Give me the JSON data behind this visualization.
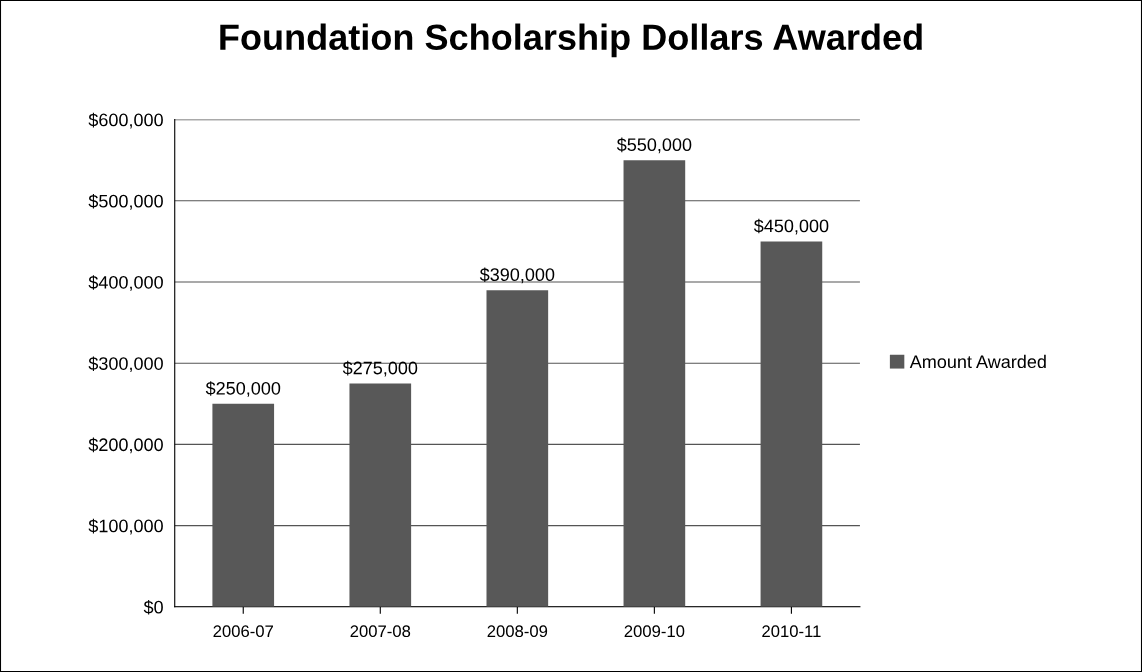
{
  "chart_data": {
    "type": "bar",
    "title": "Foundation Scholarship Dollars Awarded",
    "categories": [
      "2006-07",
      "2007-08",
      "2008-09",
      "2009-10",
      "2010-11"
    ],
    "series": [
      {
        "name": "Amount Awarded",
        "color": "#585858",
        "values": [
          250000,
          275000,
          390000,
          550000,
          450000
        ],
        "value_labels": [
          "$250,000",
          "$275,000",
          "$390,000",
          "$550,000",
          "$450,000"
        ]
      }
    ],
    "ylim": [
      0,
      600000
    ],
    "yticks": [
      {
        "value": 0,
        "label": "$0"
      },
      {
        "value": 100000,
        "label": "$100,000"
      },
      {
        "value": 200000,
        "label": "$200,000"
      },
      {
        "value": 300000,
        "label": "$300,000"
      },
      {
        "value": 400000,
        "label": "$400,000"
      },
      {
        "value": 500000,
        "label": "$500,000"
      },
      {
        "value": 600000,
        "label": "$600,000"
      }
    ],
    "grid": "y",
    "legend": "right"
  }
}
